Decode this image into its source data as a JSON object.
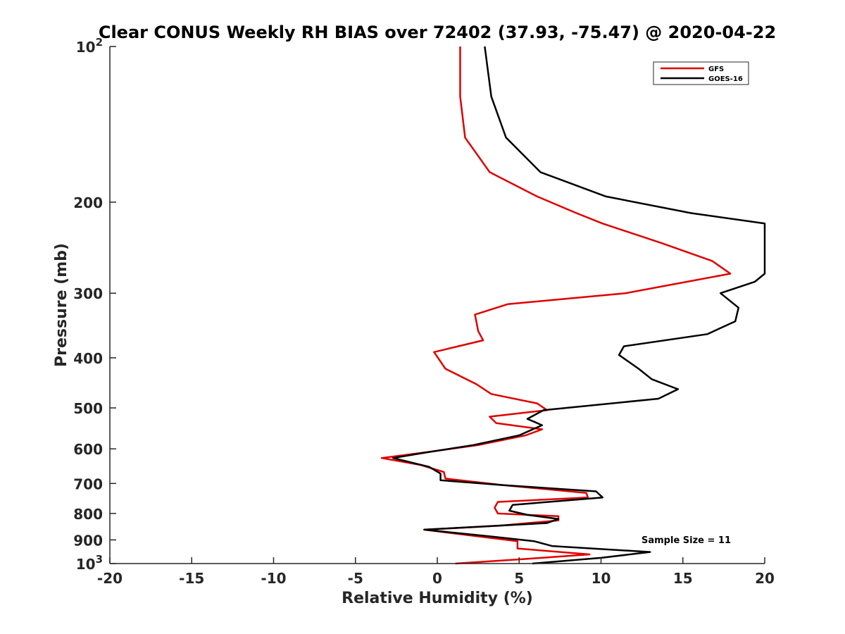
{
  "chart_data": {
    "type": "line",
    "title": "Clear CONUS Weekly RH BIAS over 72402 (37.93, -75.47) @ 2020-04-22",
    "xlabel": "Relative Humidity (%)",
    "ylabel": "Pressure (mb)",
    "xlim": [
      -20,
      20
    ],
    "ylim": [
      100,
      1000
    ],
    "yscale": "log",
    "y_reversed": true,
    "xticks": [
      -20,
      -15,
      -10,
      -5,
      0,
      5,
      10,
      15,
      20
    ],
    "xtick_labels": [
      "-20",
      "-15",
      "-10",
      "-5",
      "0",
      "5",
      "10",
      "15",
      "20"
    ],
    "yticks": [
      100,
      200,
      300,
      400,
      500,
      600,
      700,
      800,
      900,
      1000
    ],
    "ytick_labels": [
      {
        "base": "10",
        "sup": "2"
      },
      {
        "base": "200",
        "sup": ""
      },
      {
        "base": "300",
        "sup": ""
      },
      {
        "base": "400",
        "sup": ""
      },
      {
        "base": "500",
        "sup": ""
      },
      {
        "base": "600",
        "sup": ""
      },
      {
        "base": "700",
        "sup": ""
      },
      {
        "base": "800",
        "sup": ""
      },
      {
        "base": "900",
        "sup": ""
      },
      {
        "base": "10",
        "sup": "3"
      }
    ],
    "legend_position": "top-right",
    "annotation": "Sample Size = 11",
    "series": [
      {
        "name": "GFS",
        "color": "#e00000",
        "points": [
          [
            1.4,
            100
          ],
          [
            1.4,
            125
          ],
          [
            1.7,
            150
          ],
          [
            3.2,
            175
          ],
          [
            6.1,
            195
          ],
          [
            8.5,
            210
          ],
          [
            10.1,
            220
          ],
          [
            13.7,
            240
          ],
          [
            16.8,
            260
          ],
          [
            17.9,
            275
          ],
          [
            14,
            290
          ],
          [
            11.5,
            300
          ],
          [
            4.3,
            315
          ],
          [
            2.3,
            330
          ],
          [
            2.5,
            355
          ],
          [
            2.8,
            370
          ],
          [
            -0.2,
            390
          ],
          [
            0.5,
            420
          ],
          [
            2.4,
            450
          ],
          [
            3.3,
            470
          ],
          [
            6.1,
            490
          ],
          [
            6.7,
            505
          ],
          [
            3.2,
            520
          ],
          [
            3.6,
            535
          ],
          [
            6.4,
            550
          ],
          [
            5.4,
            565
          ],
          [
            2.5,
            590
          ],
          [
            -0.8,
            610
          ],
          [
            -3.4,
            625
          ],
          [
            -1,
            645
          ],
          [
            0.4,
            665
          ],
          [
            0.5,
            685
          ],
          [
            4.0,
            705
          ],
          [
            9.1,
            730
          ],
          [
            9.2,
            745
          ],
          [
            3.7,
            760
          ],
          [
            3.5,
            780
          ],
          [
            3.7,
            800
          ],
          [
            7.4,
            810
          ],
          [
            7.4,
            825
          ],
          [
            3.8,
            845
          ],
          [
            -0.8,
            860
          ],
          [
            3.0,
            890
          ],
          [
            4.9,
            905
          ],
          [
            4.9,
            935
          ],
          [
            9.3,
            960
          ],
          [
            5.3,
            980
          ],
          [
            1.1,
            1000
          ]
        ]
      },
      {
        "name": "GOES-16",
        "color": "#000000",
        "points": [
          [
            2.9,
            100
          ],
          [
            3.3,
            125
          ],
          [
            4.2,
            150
          ],
          [
            6.3,
            175
          ],
          [
            10.3,
            195
          ],
          [
            15.5,
            210
          ],
          [
            20,
            220
          ],
          [
            20,
            235
          ],
          [
            20,
            275
          ],
          [
            19.4,
            285
          ],
          [
            17.3,
            300
          ],
          [
            18.4,
            320
          ],
          [
            18.2,
            340
          ],
          [
            16.5,
            360
          ],
          [
            11.4,
            380
          ],
          [
            11.1,
            395
          ],
          [
            12.3,
            420
          ],
          [
            13.1,
            440
          ],
          [
            14.7,
            460
          ],
          [
            13.5,
            480
          ],
          [
            6.5,
            505
          ],
          [
            5.5,
            525
          ],
          [
            6.4,
            540
          ],
          [
            5.0,
            565
          ],
          [
            2.2,
            590
          ],
          [
            -0.7,
            610
          ],
          [
            -2.7,
            625
          ],
          [
            -0.5,
            650
          ],
          [
            0.2,
            670
          ],
          [
            0.2,
            690
          ],
          [
            4.0,
            705
          ],
          [
            9.7,
            725
          ],
          [
            10.1,
            745
          ],
          [
            4.6,
            770
          ],
          [
            4.4,
            790
          ],
          [
            5.5,
            805
          ],
          [
            7.4,
            820
          ],
          [
            6.7,
            835
          ],
          [
            -0.8,
            860
          ],
          [
            3.1,
            885
          ],
          [
            5.9,
            905
          ],
          [
            7.0,
            925
          ],
          [
            13.0,
            950
          ],
          [
            10.0,
            975
          ],
          [
            5.8,
            1000
          ]
        ]
      }
    ]
  }
}
